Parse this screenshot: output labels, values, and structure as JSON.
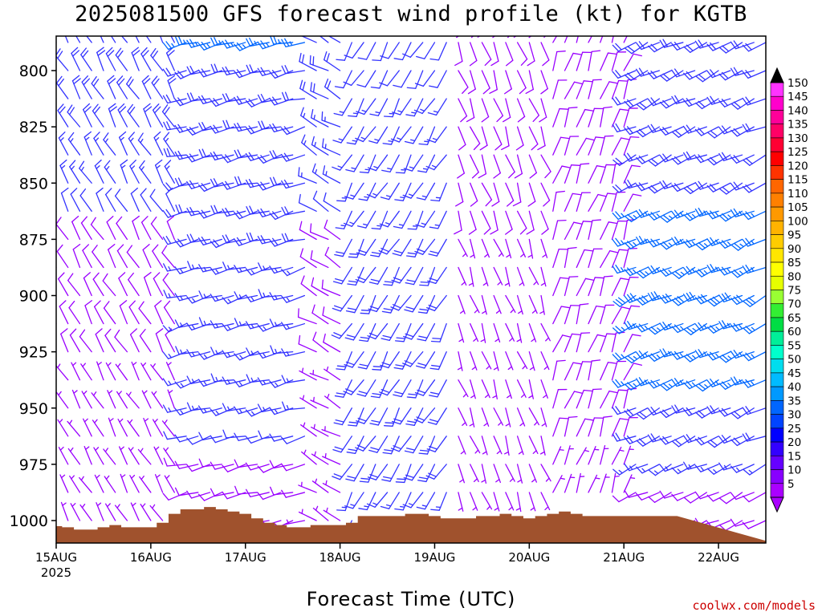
{
  "chart_data": {
    "type": "wind-barb-profile",
    "title": "2025081500 GFS forecast wind profile (kt) for KGTB",
    "xlabel": "Forecast Time (UTC)",
    "ylabel": "",
    "x_ticks": [
      "15AUG",
      "16AUG",
      "17AUG",
      "18AUG",
      "19AUG",
      "20AUG",
      "21AUG",
      "22AUG"
    ],
    "x_tick_sublabel": "2025",
    "y_ticks": [
      800,
      825,
      850,
      875,
      900,
      925,
      950,
      975,
      1000
    ],
    "ylim": [
      778,
      1010
    ],
    "x_range_hours": [
      0,
      180
    ],
    "interval_hours": 3,
    "pressure_levels": [
      775,
      787.5,
      800,
      812.5,
      825,
      837.5,
      850,
      862.5,
      875,
      887.5,
      900,
      912.5,
      925,
      937.5,
      950,
      962.5,
      975,
      987.5,
      1000
    ],
    "surface_pressure": [
      1002.5,
      1003,
      1004,
      1004,
      1003,
      1002,
      1003,
      1003,
      1003,
      1001,
      997,
      995,
      995,
      994,
      995,
      996,
      997,
      999,
      1001,
      1002,
      1003,
      1003,
      1002,
      1002,
      1002,
      1001,
      998,
      998,
      998,
      998,
      997,
      997,
      998,
      999,
      999,
      999,
      998,
      998,
      997,
      998,
      999,
      998,
      997,
      996,
      997,
      998,
      998,
      998,
      998,
      998,
      998,
      998,
      998
    ],
    "surface_color": "#a0522d",
    "colorbar": {
      "min": 5,
      "max": 150,
      "step": 5,
      "labels": [
        150,
        145,
        140,
        135,
        130,
        125,
        120,
        115,
        110,
        105,
        100,
        95,
        90,
        85,
        80,
        75,
        70,
        65,
        60,
        55,
        50,
        45,
        40,
        35,
        30,
        25,
        20,
        15,
        10,
        5
      ],
      "colors": [
        "#ff33ff",
        "#ff00cc",
        "#ff0099",
        "#ff0066",
        "#ff0033",
        "#ff0000",
        "#ff3300",
        "#ff6600",
        "#ff8000",
        "#ff9900",
        "#ffb300",
        "#ffcc00",
        "#ffe600",
        "#ffff00",
        "#e6ff00",
        "#99ff33",
        "#33ee33",
        "#00dd44",
        "#00ee99",
        "#00ffcc",
        "#00ddee",
        "#00bbff",
        "#0099ff",
        "#0066ff",
        "#0044ff",
        "#0000ff",
        "#3300ff",
        "#6600ff",
        "#8800ff",
        "#aa00ff"
      ]
    },
    "barb_color_scale": {
      "slow": "#9900ff",
      "mid": "#3333ff",
      "fast": "#0066ff"
    },
    "wind_regimes": [
      {
        "from_h": 0,
        "to_h": 33,
        "direction_deg": 330,
        "speeds_kt_upper_to_lower": [
          20,
          20,
          20,
          20,
          18,
          16,
          14,
          12,
          10,
          9,
          8,
          8,
          8,
          7,
          7,
          7,
          7,
          6,
          6
        ]
      },
      {
        "from_h": 33,
        "to_h": 66,
        "direction_deg": 255,
        "speeds_kt_upper_to_lower": [
          25,
          24,
          22,
          22,
          21,
          20,
          20,
          19,
          18,
          17,
          16,
          16,
          15,
          15,
          14,
          12,
          10,
          8,
          6
        ]
      },
      {
        "from_h": 66,
        "to_h": 75,
        "direction_deg": 300,
        "speeds_kt_upper_to_lower": [
          22,
          22,
          20,
          18,
          17,
          16,
          14,
          12,
          10,
          9,
          8,
          8,
          8,
          7,
          7,
          6,
          6,
          6,
          6
        ]
      },
      {
        "from_h": 75,
        "to_h": 102,
        "direction_deg": 210,
        "speeds_kt_upper_to_lower": [
          12,
          12,
          12,
          13,
          14,
          15,
          16,
          17,
          18,
          19,
          20,
          21,
          22,
          22,
          21,
          20,
          19,
          16,
          12
        ]
      },
      {
        "from_h": 102,
        "to_h": 126,
        "direction_deg": 160,
        "speeds_kt_upper_to_lower": [
          9,
          9,
          9,
          8,
          8,
          8,
          8,
          8,
          7,
          7,
          7,
          7,
          7,
          7,
          7,
          6,
          6,
          6,
          6
        ]
      },
      {
        "from_h": 126,
        "to_h": 147,
        "direction_deg": 20,
        "speeds_kt_upper_to_lower": [
          9,
          9,
          9,
          10,
          10,
          10,
          10,
          10,
          10,
          10,
          10,
          10,
          9,
          9,
          8,
          8,
          7,
          7,
          7
        ]
      },
      {
        "from_h": 147,
        "to_h": 180,
        "direction_deg": 245,
        "speeds_kt_upper_to_lower": [
          18,
          18,
          20,
          20,
          20,
          20,
          22,
          24,
          26,
          27,
          28,
          27,
          26,
          24,
          22,
          18,
          14,
          10,
          8
        ]
      }
    ]
  },
  "credit": "coolwx.com/models"
}
